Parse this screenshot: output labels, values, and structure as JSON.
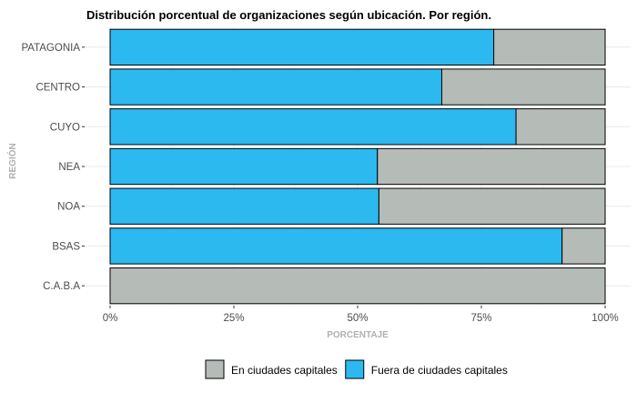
{
  "chart_data": {
    "type": "bar",
    "orientation": "horizontal",
    "stacked": true,
    "title": "Distribución porcentual de organizaciones según ubicación. Por región.",
    "xlabel": "PORCENTAJE",
    "ylabel": "REGIÓN",
    "xlim": [
      0,
      100
    ],
    "x_ticks": [
      "0%",
      "25%",
      "50%",
      "75%",
      "100%"
    ],
    "categories": [
      "PATAGONIA",
      "CENTRO",
      "CUYO",
      "NEA",
      "NOA",
      "BSAS",
      "C.A.B.A"
    ],
    "series": [
      {
        "name": "Fuera de ciudades capitales",
        "color": "#2bb9ef",
        "values": [
          77.5,
          67,
          82,
          54,
          54.3,
          91.3,
          0
        ]
      },
      {
        "name": "En ciudades capitales",
        "color": "#b5bcb8",
        "values": [
          22.5,
          33,
          18,
          46,
          45.7,
          8.7,
          100
        ]
      }
    ],
    "legend": {
      "position": "bottom",
      "entries": [
        "En ciudades capitales",
        "Fuera de ciudades capitales"
      ]
    },
    "grid": true,
    "panel_background": "#ffffff",
    "grid_color": "#ebebeb"
  }
}
